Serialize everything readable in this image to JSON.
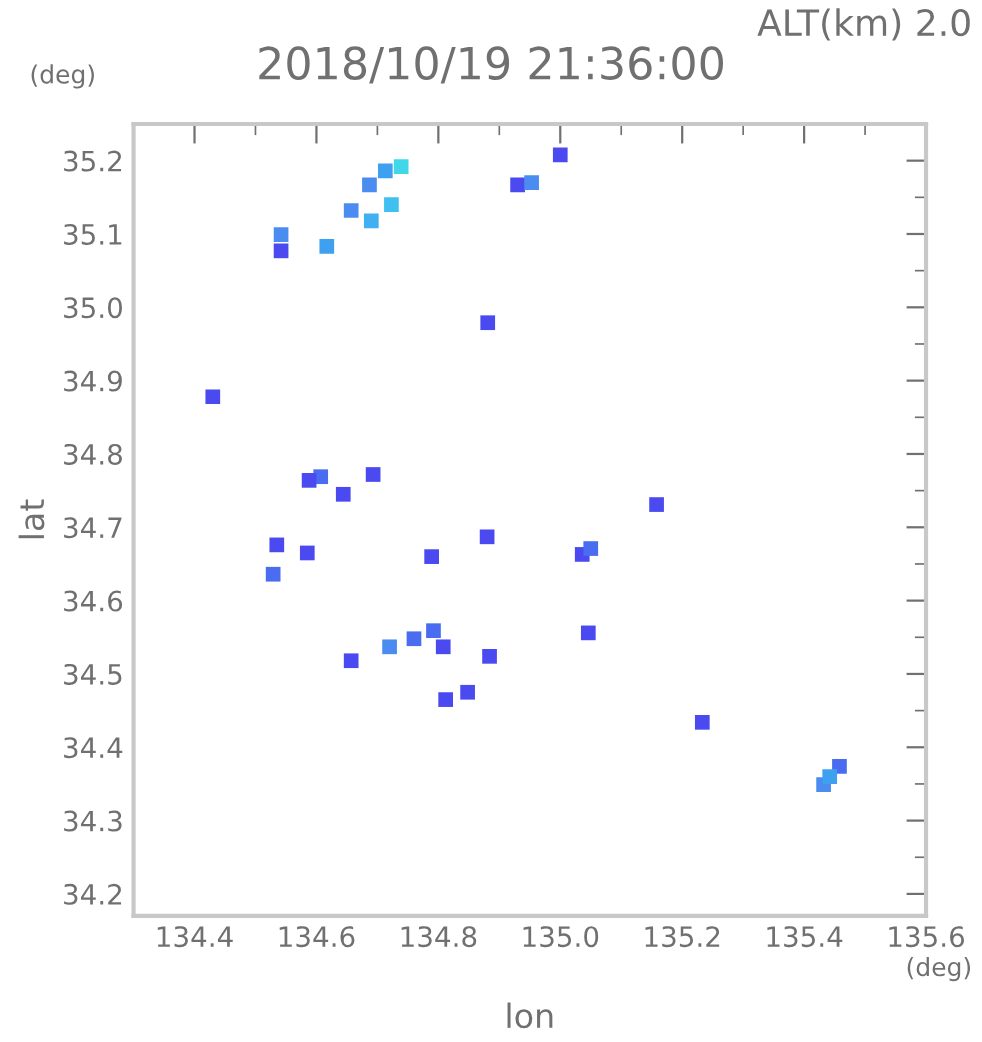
{
  "chart_data": {
    "type": "scatter",
    "title": "2018/10/19 21:36:00",
    "xlabel": "lon",
    "ylabel": "lat",
    "annotations": [
      "ALT(km) 2.0",
      "(deg)",
      "(deg)"
    ],
    "marker": "square",
    "grid": false,
    "legend": false,
    "xlim": [
      134.3,
      135.6
    ],
    "ylim": [
      34.17,
      35.25
    ],
    "xticks": [
      {
        "value": 134.4,
        "label": "134.4"
      },
      {
        "value": 134.6,
        "label": "134.6"
      },
      {
        "value": 134.8,
        "label": "134.8"
      },
      {
        "value": 135.0,
        "label": "135.0"
      },
      {
        "value": 135.2,
        "label": "135.2"
      },
      {
        "value": 135.4,
        "label": "135.4"
      },
      {
        "value": 135.6,
        "label": "135.6"
      }
    ],
    "yticks": [
      {
        "value": 34.2,
        "label": "34.2"
      },
      {
        "value": 34.3,
        "label": "34.3"
      },
      {
        "value": 34.4,
        "label": "34.4"
      },
      {
        "value": 34.5,
        "label": "34.5"
      },
      {
        "value": 34.6,
        "label": "34.6"
      },
      {
        "value": 34.7,
        "label": "34.7"
      },
      {
        "value": 34.8,
        "label": "34.8"
      },
      {
        "value": 34.9,
        "label": "34.9"
      },
      {
        "value": 35.0,
        "label": "35.0"
      },
      {
        "value": 35.1,
        "label": "35.1"
      },
      {
        "value": 35.2,
        "label": "35.2"
      }
    ],
    "series": [
      {
        "x": [
          135.0,
          134.713,
          134.687,
          134.739,
          134.657,
          134.69,
          134.723,
          134.542,
          134.542,
          134.617,
          134.881,
          134.93,
          134.953,
          134.43,
          134.607,
          134.588,
          134.693,
          134.644,
          134.535,
          134.585,
          134.529,
          134.789,
          134.88,
          135.036,
          135.05,
          134.72,
          134.792,
          134.76,
          134.808,
          134.657,
          134.848,
          134.812,
          134.884,
          135.046,
          135.233,
          135.432,
          135.458,
          135.442,
          135.158
        ],
        "values": [
          35.208,
          35.186,
          35.167,
          35.192,
          35.132,
          35.118,
          35.14,
          35.099,
          35.077,
          35.083,
          34.979,
          35.167,
          35.17,
          34.878,
          34.769,
          34.764,
          34.772,
          34.745,
          34.676,
          34.665,
          34.636,
          34.66,
          34.687,
          34.663,
          34.671,
          34.537,
          34.559,
          34.548,
          34.537,
          34.518,
          34.475,
          34.465,
          34.524,
          34.556,
          34.434,
          34.349,
          34.374,
          34.36,
          34.731
        ],
        "colors": [
          "#4a4af0",
          "#40a0f0",
          "#4a8cf0",
          "#40d8e8",
          "#4a8cf0",
          "#40b0f0",
          "#40c0f0",
          "#4a8cf0",
          "#4a4af0",
          "#40a0f0",
          "#4a4af0",
          "#4a4af0",
          "#4a8cf0",
          "#4a4af0",
          "#4a6cf0",
          "#4a4af0",
          "#4a4af0",
          "#4a4af0",
          "#4a4af0",
          "#4a4af0",
          "#4a6cf0",
          "#4a4af0",
          "#4a4af0",
          "#4a4af0",
          "#4a6cf0",
          "#4a8cf0",
          "#4a6cf0",
          "#4a6cf0",
          "#4a4af0",
          "#4a4af0",
          "#4a4af0",
          "#4a4af0",
          "#4a4af0",
          "#4a4af0",
          "#4a4af0",
          "#4a8cf0",
          "#4a6cf0",
          "#40a0f0",
          "#4a4af0"
        ]
      }
    ]
  }
}
